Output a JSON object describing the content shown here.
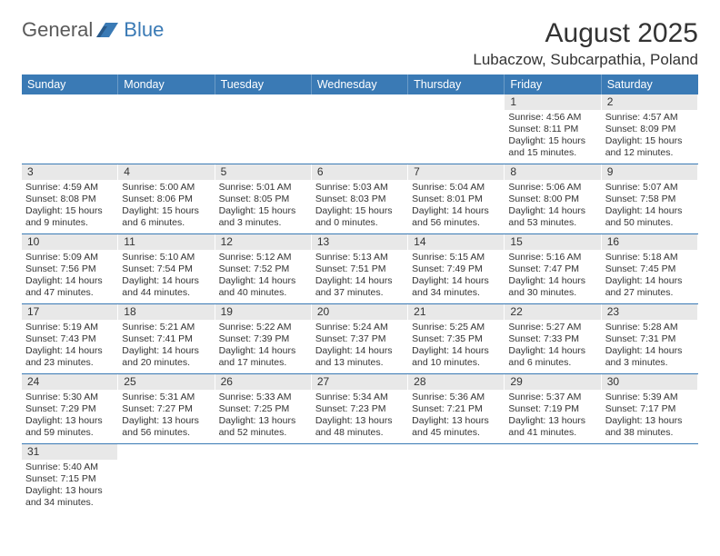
{
  "logo": {
    "text1": "General",
    "text2": "Blue"
  },
  "header": {
    "title": "August 2025",
    "location": "Lubaczow, Subcarpathia, Poland"
  },
  "colors": {
    "brand_blue": "#3a7ab5",
    "header_gray": "#e8e8e8",
    "text": "#333333",
    "background": "#ffffff"
  },
  "day_names": [
    "Sunday",
    "Monday",
    "Tuesday",
    "Wednesday",
    "Thursday",
    "Friday",
    "Saturday"
  ],
  "weeks": [
    [
      {
        "day": "",
        "lines": []
      },
      {
        "day": "",
        "lines": []
      },
      {
        "day": "",
        "lines": []
      },
      {
        "day": "",
        "lines": []
      },
      {
        "day": "",
        "lines": []
      },
      {
        "day": "1",
        "lines": [
          "Sunrise: 4:56 AM",
          "Sunset: 8:11 PM",
          "Daylight: 15 hours and 15 minutes."
        ]
      },
      {
        "day": "2",
        "lines": [
          "Sunrise: 4:57 AM",
          "Sunset: 8:09 PM",
          "Daylight: 15 hours and 12 minutes."
        ]
      }
    ],
    [
      {
        "day": "3",
        "lines": [
          "Sunrise: 4:59 AM",
          "Sunset: 8:08 PM",
          "Daylight: 15 hours and 9 minutes."
        ]
      },
      {
        "day": "4",
        "lines": [
          "Sunrise: 5:00 AM",
          "Sunset: 8:06 PM",
          "Daylight: 15 hours and 6 minutes."
        ]
      },
      {
        "day": "5",
        "lines": [
          "Sunrise: 5:01 AM",
          "Sunset: 8:05 PM",
          "Daylight: 15 hours and 3 minutes."
        ]
      },
      {
        "day": "6",
        "lines": [
          "Sunrise: 5:03 AM",
          "Sunset: 8:03 PM",
          "Daylight: 15 hours and 0 minutes."
        ]
      },
      {
        "day": "7",
        "lines": [
          "Sunrise: 5:04 AM",
          "Sunset: 8:01 PM",
          "Daylight: 14 hours and 56 minutes."
        ]
      },
      {
        "day": "8",
        "lines": [
          "Sunrise: 5:06 AM",
          "Sunset: 8:00 PM",
          "Daylight: 14 hours and 53 minutes."
        ]
      },
      {
        "day": "9",
        "lines": [
          "Sunrise: 5:07 AM",
          "Sunset: 7:58 PM",
          "Daylight: 14 hours and 50 minutes."
        ]
      }
    ],
    [
      {
        "day": "10",
        "lines": [
          "Sunrise: 5:09 AM",
          "Sunset: 7:56 PM",
          "Daylight: 14 hours and 47 minutes."
        ]
      },
      {
        "day": "11",
        "lines": [
          "Sunrise: 5:10 AM",
          "Sunset: 7:54 PM",
          "Daylight: 14 hours and 44 minutes."
        ]
      },
      {
        "day": "12",
        "lines": [
          "Sunrise: 5:12 AM",
          "Sunset: 7:52 PM",
          "Daylight: 14 hours and 40 minutes."
        ]
      },
      {
        "day": "13",
        "lines": [
          "Sunrise: 5:13 AM",
          "Sunset: 7:51 PM",
          "Daylight: 14 hours and 37 minutes."
        ]
      },
      {
        "day": "14",
        "lines": [
          "Sunrise: 5:15 AM",
          "Sunset: 7:49 PM",
          "Daylight: 14 hours and 34 minutes."
        ]
      },
      {
        "day": "15",
        "lines": [
          "Sunrise: 5:16 AM",
          "Sunset: 7:47 PM",
          "Daylight: 14 hours and 30 minutes."
        ]
      },
      {
        "day": "16",
        "lines": [
          "Sunrise: 5:18 AM",
          "Sunset: 7:45 PM",
          "Daylight: 14 hours and 27 minutes."
        ]
      }
    ],
    [
      {
        "day": "17",
        "lines": [
          "Sunrise: 5:19 AM",
          "Sunset: 7:43 PM",
          "Daylight: 14 hours and 23 minutes."
        ]
      },
      {
        "day": "18",
        "lines": [
          "Sunrise: 5:21 AM",
          "Sunset: 7:41 PM",
          "Daylight: 14 hours and 20 minutes."
        ]
      },
      {
        "day": "19",
        "lines": [
          "Sunrise: 5:22 AM",
          "Sunset: 7:39 PM",
          "Daylight: 14 hours and 17 minutes."
        ]
      },
      {
        "day": "20",
        "lines": [
          "Sunrise: 5:24 AM",
          "Sunset: 7:37 PM",
          "Daylight: 14 hours and 13 minutes."
        ]
      },
      {
        "day": "21",
        "lines": [
          "Sunrise: 5:25 AM",
          "Sunset: 7:35 PM",
          "Daylight: 14 hours and 10 minutes."
        ]
      },
      {
        "day": "22",
        "lines": [
          "Sunrise: 5:27 AM",
          "Sunset: 7:33 PM",
          "Daylight: 14 hours and 6 minutes."
        ]
      },
      {
        "day": "23",
        "lines": [
          "Sunrise: 5:28 AM",
          "Sunset: 7:31 PM",
          "Daylight: 14 hours and 3 minutes."
        ]
      }
    ],
    [
      {
        "day": "24",
        "lines": [
          "Sunrise: 5:30 AM",
          "Sunset: 7:29 PM",
          "Daylight: 13 hours and 59 minutes."
        ]
      },
      {
        "day": "25",
        "lines": [
          "Sunrise: 5:31 AM",
          "Sunset: 7:27 PM",
          "Daylight: 13 hours and 56 minutes."
        ]
      },
      {
        "day": "26",
        "lines": [
          "Sunrise: 5:33 AM",
          "Sunset: 7:25 PM",
          "Daylight: 13 hours and 52 minutes."
        ]
      },
      {
        "day": "27",
        "lines": [
          "Sunrise: 5:34 AM",
          "Sunset: 7:23 PM",
          "Daylight: 13 hours and 48 minutes."
        ]
      },
      {
        "day": "28",
        "lines": [
          "Sunrise: 5:36 AM",
          "Sunset: 7:21 PM",
          "Daylight: 13 hours and 45 minutes."
        ]
      },
      {
        "day": "29",
        "lines": [
          "Sunrise: 5:37 AM",
          "Sunset: 7:19 PM",
          "Daylight: 13 hours and 41 minutes."
        ]
      },
      {
        "day": "30",
        "lines": [
          "Sunrise: 5:39 AM",
          "Sunset: 7:17 PM",
          "Daylight: 13 hours and 38 minutes."
        ]
      }
    ],
    [
      {
        "day": "31",
        "lines": [
          "Sunrise: 5:40 AM",
          "Sunset: 7:15 PM",
          "Daylight: 13 hours and 34 minutes."
        ]
      },
      {
        "day": "",
        "lines": []
      },
      {
        "day": "",
        "lines": []
      },
      {
        "day": "",
        "lines": []
      },
      {
        "day": "",
        "lines": []
      },
      {
        "day": "",
        "lines": []
      },
      {
        "day": "",
        "lines": []
      }
    ]
  ]
}
